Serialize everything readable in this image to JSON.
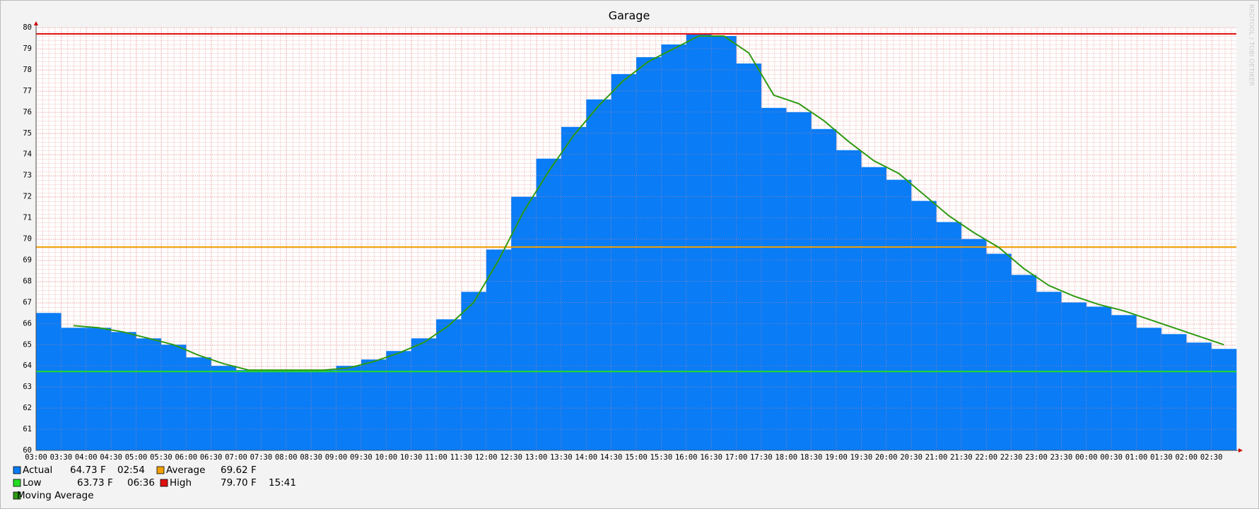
{
  "chart_data": {
    "type": "area",
    "title": "Garage",
    "watermark": "RRDTOOL / TOBI OETIKER",
    "categories": [
      "03:00",
      "03:30",
      "04:00",
      "04:30",
      "05:00",
      "05:30",
      "06:00",
      "06:30",
      "07:00",
      "07:30",
      "08:00",
      "08:30",
      "09:00",
      "09:30",
      "10:00",
      "10:30",
      "11:00",
      "11:30",
      "12:00",
      "12:30",
      "13:00",
      "13:30",
      "14:00",
      "14:30",
      "15:00",
      "15:30",
      "16:00",
      "16:30",
      "17:00",
      "17:30",
      "18:00",
      "18:30",
      "19:00",
      "19:30",
      "20:00",
      "20:30",
      "21:00",
      "21:30",
      "22:00",
      "22:30",
      "23:00",
      "23:30",
      "00:00",
      "00:30",
      "01:00",
      "01:30",
      "02:00",
      "02:30"
    ],
    "series": [
      {
        "name": "Actual",
        "color": "#0a7cf5",
        "style": "area",
        "last_label": "64.73 F",
        "last_time": "02:54",
        "values": [
          66.5,
          65.8,
          65.8,
          65.6,
          65.3,
          65.0,
          64.4,
          64.0,
          63.8,
          63.8,
          63.8,
          63.8,
          64.0,
          64.3,
          64.7,
          65.3,
          66.2,
          67.5,
          69.5,
          72.0,
          73.8,
          75.3,
          76.6,
          77.8,
          78.6,
          79.2,
          79.7,
          79.6,
          78.3,
          76.2,
          76.0,
          75.2,
          74.2,
          73.4,
          72.8,
          71.8,
          70.8,
          70.0,
          69.3,
          68.3,
          67.5,
          67.0,
          66.8,
          66.4,
          65.8,
          65.5,
          65.1,
          64.8
        ]
      },
      {
        "name": "Moving Average",
        "color": "#2e9a12",
        "style": "line",
        "values": [
          null,
          65.9,
          65.8,
          65.6,
          65.3,
          65.0,
          64.5,
          64.1,
          63.8,
          63.8,
          63.8,
          63.8,
          63.9,
          64.2,
          64.6,
          65.1,
          65.9,
          67.0,
          69.0,
          71.3,
          73.2,
          74.9,
          76.3,
          77.5,
          78.4,
          79.0,
          79.6,
          79.6,
          78.8,
          76.8,
          76.4,
          75.6,
          74.6,
          73.7,
          73.1,
          72.1,
          71.1,
          70.3,
          69.6,
          68.6,
          67.8,
          67.3,
          66.9,
          66.6,
          66.2,
          65.8,
          65.4,
          65.0
        ]
      }
    ],
    "reference_lines": [
      {
        "name": "Average",
        "color": "#f0a000",
        "value": 69.62,
        "label": "69.62 F"
      },
      {
        "name": "Low",
        "color": "#22dd22",
        "value": 63.73,
        "label": "63.73 F",
        "time": "06:36"
      },
      {
        "name": "High",
        "color": "#e01010",
        "value": 79.7,
        "label": "79.70 F",
        "time": "15:41"
      }
    ],
    "ylim": [
      60,
      80
    ],
    "yticks": [
      60,
      61,
      62,
      63,
      64,
      65,
      66,
      67,
      68,
      69,
      70,
      71,
      72,
      73,
      74,
      75,
      76,
      77,
      78,
      79,
      80
    ],
    "grid": true
  }
}
